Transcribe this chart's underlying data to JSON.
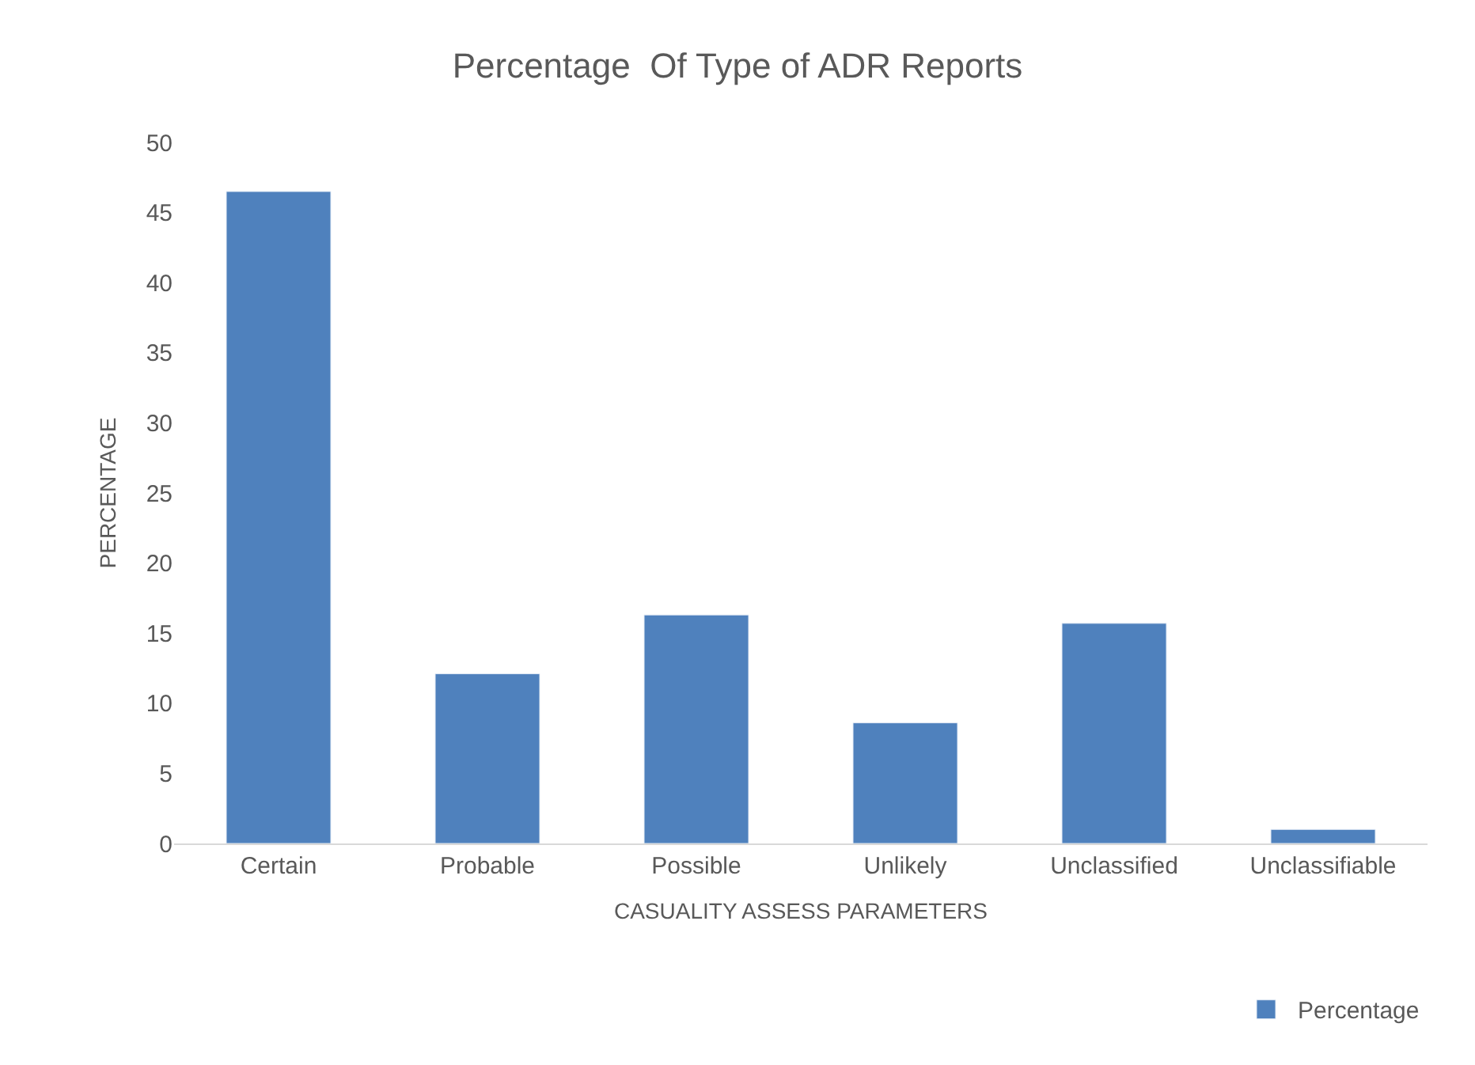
{
  "chart_data": {
    "type": "bar",
    "title": "Percentage  Of Type of ADR Reports",
    "xlabel": "CASUALITY ASSESS PARAMETERS",
    "ylabel": "PERCENTAGE",
    "categories": [
      "Certain",
      "Probable",
      "Possible",
      "Unlikely",
      "Unclassified",
      "Unclassifiable"
    ],
    "series": [
      {
        "name": "Percentage",
        "color": "#4f81bd",
        "values": [
          46.5,
          12.1,
          16.3,
          8.6,
          15.7,
          1.0
        ]
      }
    ],
    "ylim": [
      0,
      50
    ],
    "yticks": [
      0,
      5,
      10,
      15,
      20,
      25,
      30,
      35,
      40,
      45,
      50
    ],
    "grid": false,
    "legend": "bottom right"
  }
}
